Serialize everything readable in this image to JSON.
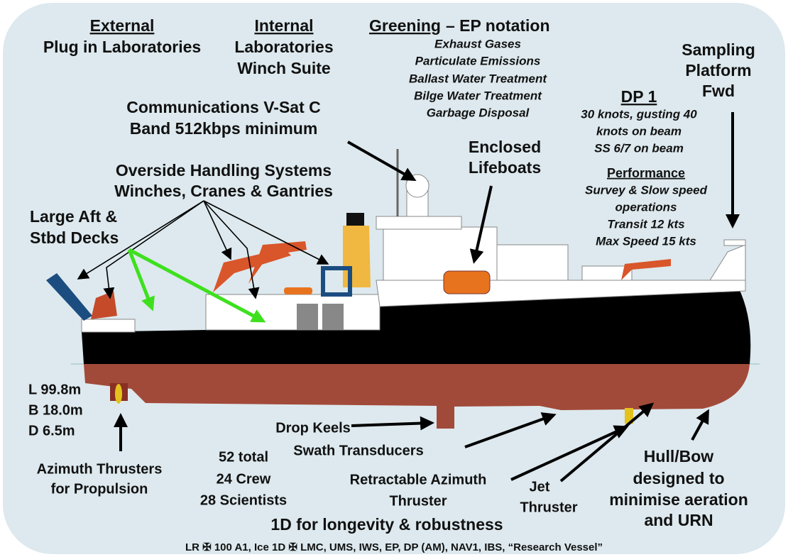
{
  "external": {
    "heading": "External",
    "lines": [
      "Plug in Laboratories"
    ]
  },
  "internal": {
    "heading": "Internal",
    "lines": [
      "Laboratories",
      "Winch Suite"
    ]
  },
  "greening": {
    "heading": "Greening",
    "suffix": "– EP notation",
    "items": [
      "Exhaust Gases",
      "Particulate Emissions",
      "Ballast Water Treatment",
      "Bilge Water Treatment",
      "Garbage Disposal"
    ]
  },
  "sampling": {
    "lines": [
      "Sampling",
      "Platform",
      "Fwd"
    ]
  },
  "dp": {
    "heading": "DP 1",
    "lines": [
      "30 knots, gusting 40",
      "knots on beam",
      "SS 6/7 on beam"
    ]
  },
  "performance": {
    "heading": "Performance",
    "lines": [
      "Survey & Slow speed",
      "operations",
      "Transit 12 kts",
      "Max Speed 15 kts"
    ]
  },
  "communications": {
    "lines": [
      "Communications V-Sat C",
      "Band 512kbps minimum"
    ]
  },
  "lifeboats": {
    "lines": [
      "Enclosed",
      "Lifeboats"
    ]
  },
  "overside": {
    "lines": [
      "Overside Handling Systems",
      "Winches, Cranes & Gantries"
    ]
  },
  "decks": {
    "lines": [
      "Large Aft &",
      "Stbd Decks"
    ]
  },
  "dimensions": {
    "lines": [
      "L 99.8m",
      "B 18.0m",
      "D 6.5m"
    ]
  },
  "azimuth": {
    "lines": [
      "Azimuth Thrusters",
      "for Propulsion"
    ]
  },
  "complement": {
    "lines": [
      "52 total",
      "24 Crew",
      "28 Scientists"
    ]
  },
  "keels": {
    "lines": [
      "Drop Keels",
      "Swath Transducers"
    ]
  },
  "retractable": {
    "lines": [
      "Retractable Azimuth",
      "Thruster"
    ]
  },
  "jet": {
    "lines": [
      "Jet",
      "Thruster"
    ]
  },
  "hull": {
    "lines": [
      "Hull/Bow",
      "designed to",
      "minimise aeration",
      "and URN"
    ]
  },
  "ice": "1D for longevity & robustness",
  "class_notation": "LR ✠ 100 A1, Ice 1D ✠ LMC, UMS, IWS, EP, DP (AM), NAV1, IBS, “Research Vessel”"
}
